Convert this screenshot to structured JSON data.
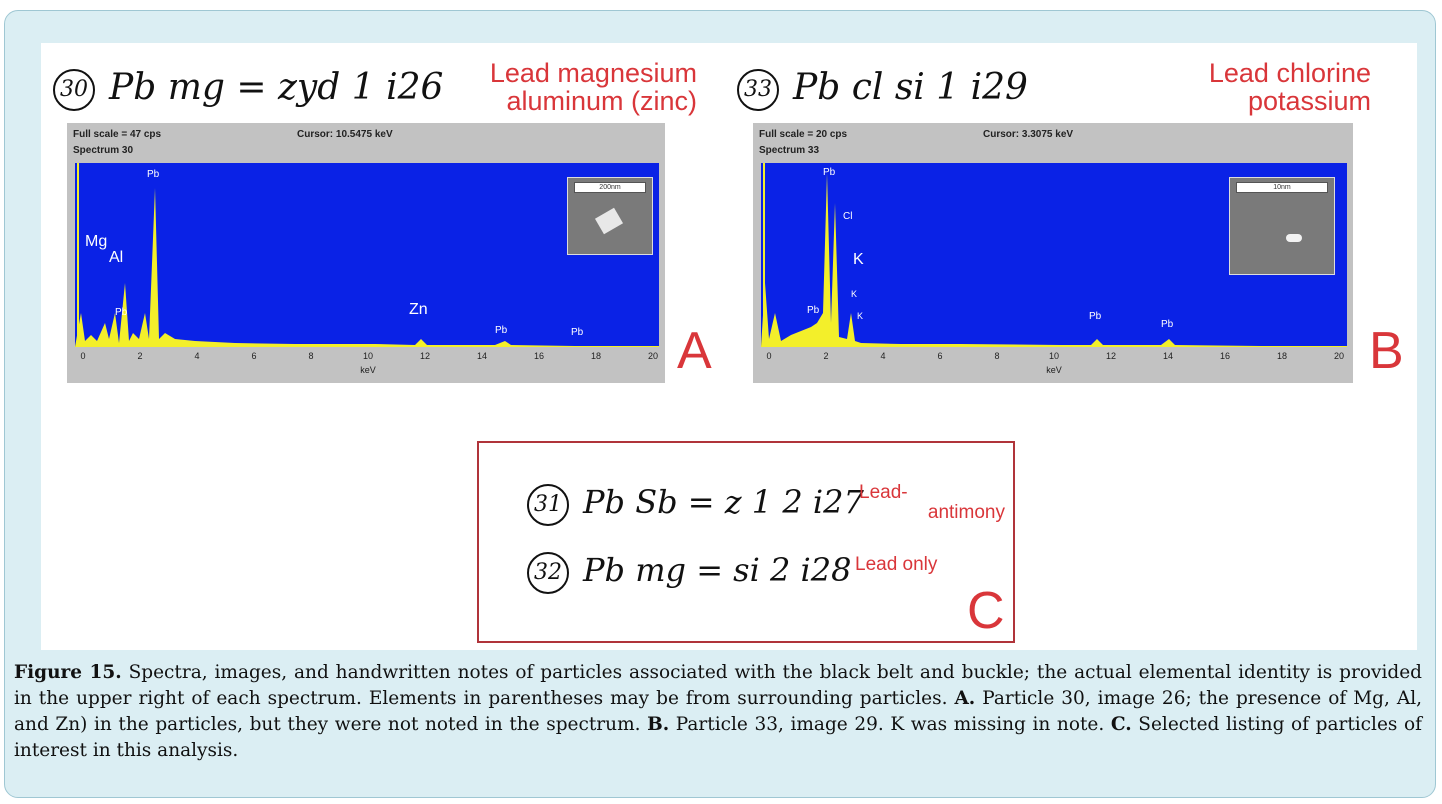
{
  "panel_a": {
    "note_num": "30",
    "note_text": "Pb mg = zyd 1 i26",
    "label_line1": "Lead magnesium",
    "label_line2": "aluminum (zinc)",
    "letter": "A",
    "full_scale": "Full scale = 47  cps",
    "cursor": "Cursor:  10.5475 keV",
    "spectrum": "Spectrum  30",
    "inset_scale": "200nm",
    "xlabel": "keV",
    "ticks": [
      "0",
      "2",
      "4",
      "6",
      "8",
      "10",
      "12",
      "14",
      "16",
      "18",
      "20"
    ],
    "peaks": [
      {
        "label": "Mg"
      },
      {
        "label": "Al"
      },
      {
        "label": "Pb"
      },
      {
        "label": "Pb"
      },
      {
        "label": "Zn"
      },
      {
        "label": "Pb"
      },
      {
        "label": "Pb"
      }
    ]
  },
  "panel_b": {
    "note_num": "33",
    "note_text": "Pb cl si 1 i29",
    "label_line1": "Lead chlorine",
    "label_line2": "potassium",
    "letter": "B",
    "full_scale": "Full scale = 20  cps",
    "cursor": "Cursor:  3.3075 keV",
    "spectrum": "Spectrum  33",
    "inset_scale": "10nm",
    "xlabel": "keV",
    "ticks": [
      "0",
      "2",
      "4",
      "6",
      "8",
      "10",
      "12",
      "14",
      "16",
      "18",
      "20"
    ],
    "peaks": [
      {
        "label": "Pb"
      },
      {
        "label": "Cl"
      },
      {
        "label": "K"
      },
      {
        "label": "K"
      },
      {
        "label": "K"
      },
      {
        "label": "Pb"
      },
      {
        "label": "Pb"
      },
      {
        "label": "Pb"
      }
    ]
  },
  "panel_c": {
    "row1_num": "31",
    "row1_text": "Pb Sb = z 1 2  i27",
    "row1_label_line1": "Lead-",
    "row1_label_line2": "antimony",
    "row2_num": "32",
    "row2_text": "Pb mg = si  2 i28",
    "row2_label": "Lead only",
    "letter": "C"
  },
  "caption": {
    "fig": "Figure 15.",
    "text1": " Spectra, images, and handwritten notes of particles associated with the black belt and buckle; the actual elemental identity is provided in the upper right of each spectrum. Elements in parentheses may be from surrounding particles. ",
    "a": "A.",
    "text2": " Particle 30, image 26; the presence of Mg, Al, and Zn) in the particles, but they were not noted in the spectrum. ",
    "b": "B.",
    "text3": " Particle 33, image 29. K was missing in note. ",
    "c": "C.",
    "text4": " Selected listing of particles of interest in this analysis."
  },
  "colors": {
    "frame_bg": "#dbeef3",
    "plot_bg": "#0a22e6",
    "spectrum_fill": "#f3ef2a",
    "accent_red": "#d9363a"
  }
}
